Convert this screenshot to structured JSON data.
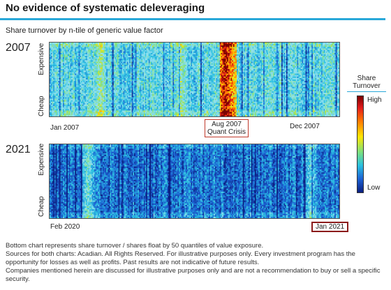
{
  "title": "No evidence of systematic deleveraging",
  "subtitle": "Share turnover by n-tile of generic value factor",
  "chart_data": [
    {
      "type": "heatmap",
      "panel_label": "2007",
      "y_axis": {
        "top_label": "Expensive",
        "bottom_label": "Cheap"
      },
      "x_tick_labels": [
        "Jan 2007",
        "Dec 2007"
      ],
      "annotation": {
        "label": "Aug 2007",
        "sublabel": "Quant Crisis"
      },
      "rows": 50,
      "columns": 240,
      "value_description": "relative share turnover",
      "hot_periods": [
        {
          "x_fraction": 0.175,
          "level": 0.62
        },
        {
          "x_fraction": 0.45,
          "level": 0.6
        },
        {
          "x_fraction": 0.605,
          "level": 0.98
        },
        {
          "x_fraction": 0.625,
          "level": 0.85
        }
      ],
      "base_level": 0.42
    },
    {
      "type": "heatmap",
      "panel_label": "2021",
      "y_axis": {
        "top_label": "Expensive",
        "bottom_label": "Cheap"
      },
      "x_tick_labels": [
        "Feb 2020",
        "Jan 2021"
      ],
      "annotation": {
        "label": "Jan 2021"
      },
      "rows": 50,
      "columns": 240,
      "value_description": "relative share turnover",
      "hot_periods": [
        {
          "x_fraction": 0.13,
          "level": 0.5
        },
        {
          "x_fraction": 0.9,
          "level": 0.45
        }
      ],
      "base_level": 0.2
    }
  ],
  "legend": {
    "title": "Share Turnover",
    "high": "High",
    "low": "Low"
  },
  "colors": {
    "rule": "#29a8d9",
    "annotation_border": "#c0392b"
  },
  "footnotes": [
    "Bottom chart represents share turnover / shares float by 50 quantiles of value exposure.",
    "Sources for both charts: Acadian. All Rights Reserved. For illustrative purposes only. Every investment program has the opportunity for losses as well as profits. Past results are not indicative of future results.",
    "Companies mentioned herein are discussed for illustrative purposes only and are not a recommendation to buy or sell a specific security."
  ]
}
